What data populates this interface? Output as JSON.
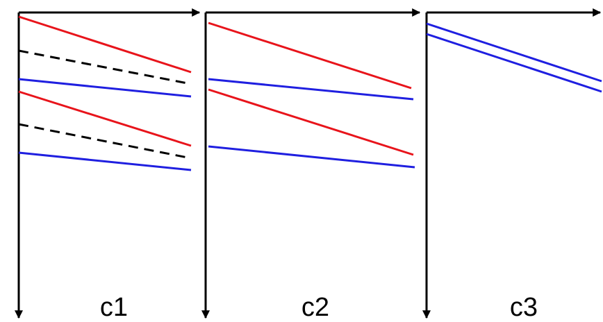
{
  "panels": [
    {
      "label": "c1",
      "lines": [
        {
          "color": "red",
          "style": "solid"
        },
        {
          "color": "black",
          "style": "dashed"
        },
        {
          "color": "blue",
          "style": "solid"
        },
        {
          "color": "red",
          "style": "solid"
        },
        {
          "color": "black",
          "style": "dashed"
        },
        {
          "color": "blue",
          "style": "solid"
        }
      ]
    },
    {
      "label": "c2",
      "lines": [
        {
          "color": "red",
          "style": "solid"
        },
        {
          "color": "blue",
          "style": "solid"
        },
        {
          "color": "red",
          "style": "solid"
        },
        {
          "color": "blue",
          "style": "solid"
        }
      ]
    },
    {
      "label": "c3",
      "lines": [
        {
          "color": "blue",
          "style": "solid"
        },
        {
          "color": "blue",
          "style": "solid"
        }
      ]
    }
  ],
  "colors": {
    "axis": "#000000",
    "red": "#e8141b",
    "blue": "#1f1fe0",
    "black": "#000000"
  }
}
